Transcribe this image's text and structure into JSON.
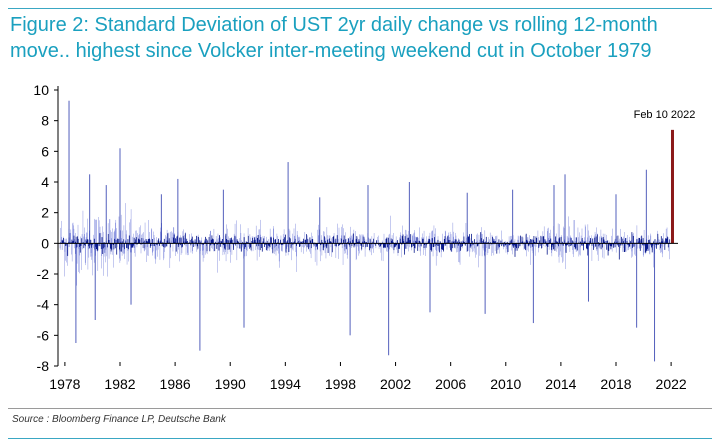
{
  "title": "Figure 2: Standard Deviation of UST 2yr daily change vs rolling 12-month move.. highest since Volcker inter-meeting weekend cut in October 1979",
  "source": "Source : Bloomberg Finance LP, Deutsche Bank",
  "chart_data": {
    "type": "bar",
    "title": "Figure 2: Standard Deviation of UST 2yr daily change vs rolling 12-month move.. highest since Volcker inter-meeting weekend cut in October 1979",
    "xlabel": "",
    "ylabel": "",
    "xlim": [
      1977.5,
      2022.5
    ],
    "ylim": [
      -8,
      10
    ],
    "x_ticks": [
      "1978",
      "1982",
      "1986",
      "1990",
      "1994",
      "1998",
      "2002",
      "2006",
      "2010",
      "2014",
      "2018",
      "2022"
    ],
    "y_ticks": [
      "10",
      "8",
      "6",
      "4",
      "2",
      "0",
      "-2",
      "-4",
      "-6",
      "-8"
    ],
    "grid": false,
    "series": [
      {
        "color": "#1f2fa8",
        "x": [
          1978.3,
          1978.8,
          1979.8,
          1980.2,
          1981.0,
          1982.0,
          1982.8,
          1985.0,
          1986.2,
          1987.8,
          1989.5,
          1991.0,
          1994.2,
          1996.5,
          1998.7,
          2000.0,
          2001.5,
          2003.0,
          2004.5,
          2007.2,
          2008.5,
          2010.5,
          2012.0,
          2013.5,
          2014.3,
          2016.0,
          2018.0,
          2019.5,
          2020.2,
          2020.8
        ],
        "values": [
          9.3,
          -6.5,
          4.5,
          -5.0,
          3.8,
          6.2,
          -4.0,
          3.2,
          4.2,
          -7.0,
          3.5,
          -5.5,
          5.3,
          3.0,
          -6.0,
          3.8,
          -7.3,
          4.0,
          -4.5,
          3.3,
          -4.6,
          3.5,
          -5.2,
          3.8,
          4.5,
          -3.8,
          3.2,
          -5.5,
          4.8,
          -7.7
        ]
      },
      {
        "color": "#8b1a1a",
        "x": [
          2022.1
        ],
        "values": [
          7.4
        ]
      }
    ],
    "annotations": [
      {
        "text": "Feb 10 2022",
        "x": 2022.1,
        "y": 7.4
      }
    ]
  }
}
